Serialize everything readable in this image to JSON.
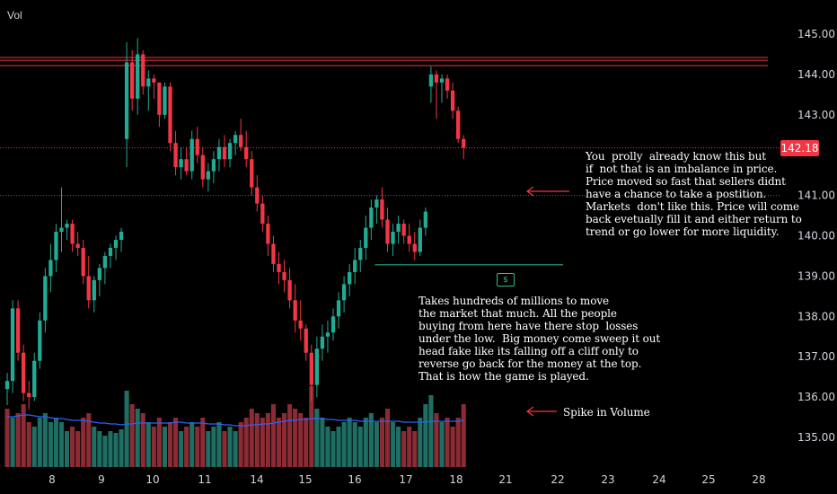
{
  "header": {
    "volume_label": "Vol"
  },
  "last_price_label": "142.18",
  "money_icon": "money-icon",
  "annotations": {
    "imbalance": "You  prolly  already know this but\nif  not that is an imbalance in price.\nPrice moved so fast that sellers didnt\nhave a chance to take a postition.\nMarkets  don't like this. Price will come\nback evetually fill it and either return to\ntrend or go lower for more liquidity.",
    "sweep": "Takes hundreds of millions to move\nthe market that much. All the people\nbuying from here have there stop  losses\nunder the low.  Big money come sweep it out\nhead fake like its falling off a cliff only to\nreverse go back for the money at the top.\nThat is how the game is played.",
    "volume": "Spike in Volume"
  },
  "colors": {
    "background": "#000000",
    "up": "#22ab94",
    "down": "#f23645",
    "vol_up": "#1e6e63",
    "vol_down": "#8c2b34",
    "ma": "#2962ff",
    "text": "#d1d4dc"
  },
  "chart_data": {
    "type": "candlestick",
    "y_ticks": [
      "145.00",
      "144.00",
      "143.00",
      "142.00",
      "141.00",
      "140.00",
      "139.00",
      "138.00",
      "137.00",
      "136.00",
      "135.00"
    ],
    "x_ticks": [
      "8",
      "9",
      "10",
      "11",
      "14",
      "15",
      "16",
      "17",
      "18",
      "21",
      "22",
      "23",
      "24",
      "25",
      "28"
    ],
    "ylim": [
      134.75,
      145.3
    ],
    "last_price": 142.18,
    "resistance_levels": [
      144.42,
      144.35,
      144.22
    ],
    "imbalance_level": 141.0,
    "support_level": 139.28,
    "candles": [
      [
        136.2,
        136.6,
        135.8,
        136.4
      ],
      [
        136.4,
        138.4,
        136.1,
        138.2
      ],
      [
        138.2,
        138.4,
        136.9,
        137.1
      ],
      [
        137.1,
        137.3,
        135.9,
        136.1
      ],
      [
        136.1,
        136.4,
        135.7,
        136.0
      ],
      [
        136.0,
        137.1,
        135.9,
        136.9
      ],
      [
        136.9,
        138.1,
        136.7,
        137.9
      ],
      [
        137.9,
        139.2,
        137.6,
        139.0
      ],
      [
        139.0,
        139.8,
        138.6,
        139.4
      ],
      [
        139.4,
        140.3,
        139.1,
        140.1
      ],
      [
        140.1,
        141.2,
        139.6,
        140.2
      ],
      [
        140.2,
        140.4,
        139.9,
        140.3
      ],
      [
        140.3,
        140.4,
        139.6,
        139.8
      ],
      [
        139.8,
        140.1,
        139.5,
        139.7
      ],
      [
        139.7,
        139.9,
        138.8,
        139.0
      ],
      [
        139.0,
        139.5,
        138.2,
        138.4
      ],
      [
        138.4,
        139.0,
        138.1,
        138.9
      ],
      [
        138.9,
        139.3,
        138.5,
        139.2
      ],
      [
        139.2,
        139.6,
        138.8,
        139.5
      ],
      [
        139.5,
        139.8,
        139.2,
        139.7
      ],
      [
        139.7,
        140.0,
        139.4,
        139.9
      ],
      [
        139.9,
        140.2,
        139.6,
        140.1
      ],
      [
        142.4,
        144.8,
        141.7,
        144.3
      ],
      [
        144.3,
        144.6,
        143.1,
        143.4
      ],
      [
        143.4,
        144.9,
        143.0,
        144.5
      ],
      [
        144.5,
        144.6,
        143.5,
        143.7
      ],
      [
        143.7,
        144.1,
        143.1,
        143.9
      ],
      [
        143.9,
        144.0,
        143.4,
        143.8
      ],
      [
        143.8,
        143.8,
        142.7,
        143.0
      ],
      [
        143.0,
        143.8,
        142.9,
        143.7
      ],
      [
        143.7,
        143.8,
        142.1,
        142.3
      ],
      [
        142.3,
        142.6,
        141.5,
        141.7
      ],
      [
        141.7,
        142.2,
        141.4,
        141.9
      ],
      [
        141.9,
        142.2,
        141.5,
        141.6
      ],
      [
        141.6,
        142.6,
        141.4,
        142.4
      ],
      [
        142.4,
        142.7,
        141.8,
        142.0
      ],
      [
        142.0,
        142.2,
        141.2,
        141.4
      ],
      [
        141.4,
        141.8,
        141.1,
        141.6
      ],
      [
        141.6,
        142.1,
        141.3,
        141.9
      ],
      [
        141.9,
        142.4,
        141.6,
        142.2
      ],
      [
        142.2,
        142.5,
        141.7,
        141.9
      ],
      [
        141.9,
        142.4,
        141.7,
        142.3
      ],
      [
        142.3,
        142.6,
        142.0,
        142.5
      ],
      [
        142.5,
        142.9,
        142.1,
        142.2
      ],
      [
        142.2,
        142.6,
        141.7,
        141.9
      ],
      [
        141.9,
        142.1,
        141.0,
        141.2
      ],
      [
        141.2,
        141.5,
        140.6,
        140.8
      ],
      [
        140.8,
        141.0,
        140.1,
        140.3
      ],
      [
        140.3,
        140.5,
        139.5,
        139.8
      ],
      [
        139.8,
        140.0,
        139.1,
        139.3
      ],
      [
        139.3,
        139.6,
        138.8,
        139.1
      ],
      [
        139.1,
        139.4,
        138.6,
        138.9
      ],
      [
        138.9,
        139.2,
        138.2,
        138.4
      ],
      [
        138.4,
        138.8,
        137.6,
        137.9
      ],
      [
        137.9,
        138.4,
        137.4,
        137.7
      ],
      [
        137.7,
        137.8,
        136.9,
        137.1
      ],
      [
        137.1,
        137.3,
        135.9,
        136.3
      ],
      [
        136.3,
        137.5,
        136.0,
        137.2
      ],
      [
        137.2,
        137.8,
        136.9,
        137.5
      ],
      [
        137.5,
        137.9,
        137.1,
        137.6
      ],
      [
        137.6,
        138.2,
        137.4,
        138.0
      ],
      [
        138.0,
        138.6,
        137.7,
        138.4
      ],
      [
        138.4,
        139.0,
        138.1,
        138.8
      ],
      [
        138.8,
        139.3,
        138.5,
        139.1
      ],
      [
        139.1,
        139.7,
        138.8,
        139.4
      ],
      [
        139.4,
        139.9,
        139.1,
        139.7
      ],
      [
        139.7,
        140.5,
        139.4,
        140.2
      ],
      [
        140.2,
        140.9,
        139.9,
        140.7
      ],
      [
        140.7,
        141.0,
        140.3,
        140.9
      ],
      [
        140.9,
        141.2,
        140.2,
        140.4
      ],
      [
        140.4,
        140.7,
        139.6,
        139.8
      ],
      [
        139.8,
        140.3,
        139.5,
        140.1
      ],
      [
        140.1,
        140.5,
        139.8,
        140.3
      ],
      [
        140.3,
        140.4,
        139.8,
        140.0
      ],
      [
        140.0,
        140.3,
        139.6,
        139.8
      ],
      [
        139.8,
        140.1,
        139.4,
        139.6
      ],
      [
        139.6,
        140.4,
        139.5,
        140.2
      ],
      [
        140.2,
        140.7,
        140.0,
        140.6
      ],
      [
        143.7,
        144.2,
        143.3,
        144.0
      ],
      [
        144.0,
        144.1,
        142.9,
        143.8
      ],
      [
        143.8,
        144.0,
        143.3,
        143.9
      ],
      [
        143.9,
        144.0,
        143.4,
        143.6
      ],
      [
        143.6,
        143.8,
        142.9,
        143.1
      ],
      [
        143.1,
        143.2,
        142.3,
        142.4
      ],
      [
        142.4,
        142.5,
        141.9,
        142.18
      ]
    ],
    "volume": [
      [
        0.65,
        0
      ],
      [
        0.55,
        1
      ],
      [
        0.6,
        0
      ],
      [
        0.7,
        0
      ],
      [
        0.5,
        0
      ],
      [
        0.45,
        1
      ],
      [
        0.55,
        1
      ],
      [
        0.6,
        1
      ],
      [
        0.5,
        1
      ],
      [
        0.55,
        1
      ],
      [
        0.5,
        1
      ],
      [
        0.4,
        1
      ],
      [
        0.45,
        0
      ],
      [
        0.4,
        0
      ],
      [
        0.55,
        0
      ],
      [
        0.6,
        0
      ],
      [
        0.45,
        1
      ],
      [
        0.4,
        1
      ],
      [
        0.35,
        1
      ],
      [
        0.4,
        1
      ],
      [
        0.38,
        1
      ],
      [
        0.42,
        1
      ],
      [
        0.85,
        1
      ],
      [
        0.7,
        0
      ],
      [
        0.65,
        1
      ],
      [
        0.6,
        0
      ],
      [
        0.5,
        1
      ],
      [
        0.45,
        0
      ],
      [
        0.55,
        0
      ],
      [
        0.45,
        1
      ],
      [
        0.5,
        0
      ],
      [
        0.55,
        0
      ],
      [
        0.4,
        1
      ],
      [
        0.45,
        0
      ],
      [
        0.5,
        1
      ],
      [
        0.45,
        0
      ],
      [
        0.55,
        0
      ],
      [
        0.4,
        1
      ],
      [
        0.45,
        1
      ],
      [
        0.5,
        1
      ],
      [
        0.4,
        0
      ],
      [
        0.45,
        1
      ],
      [
        0.4,
        1
      ],
      [
        0.5,
        0
      ],
      [
        0.55,
        0
      ],
      [
        0.65,
        0
      ],
      [
        0.6,
        0
      ],
      [
        0.55,
        0
      ],
      [
        0.6,
        0
      ],
      [
        0.7,
        0
      ],
      [
        0.55,
        0
      ],
      [
        0.6,
        0
      ],
      [
        0.7,
        0
      ],
      [
        0.65,
        0
      ],
      [
        0.6,
        0
      ],
      [
        0.55,
        0
      ],
      [
        0.9,
        0
      ],
      [
        0.65,
        1
      ],
      [
        0.55,
        1
      ],
      [
        0.45,
        1
      ],
      [
        0.4,
        1
      ],
      [
        0.45,
        1
      ],
      [
        0.5,
        1
      ],
      [
        0.55,
        1
      ],
      [
        0.5,
        1
      ],
      [
        0.45,
        1
      ],
      [
        0.55,
        1
      ],
      [
        0.6,
        1
      ],
      [
        0.5,
        1
      ],
      [
        0.55,
        0
      ],
      [
        0.65,
        0
      ],
      [
        0.5,
        1
      ],
      [
        0.45,
        1
      ],
      [
        0.4,
        0
      ],
      [
        0.45,
        0
      ],
      [
        0.4,
        0
      ],
      [
        0.55,
        1
      ],
      [
        0.7,
        1
      ],
      [
        0.8,
        1
      ],
      [
        0.6,
        0
      ],
      [
        0.5,
        1
      ],
      [
        0.55,
        0
      ],
      [
        0.45,
        0
      ],
      [
        0.55,
        0
      ],
      [
        0.7,
        0
      ]
    ],
    "ma": [
      0.56,
      0.56,
      0.57,
      0.58,
      0.58,
      0.57,
      0.56,
      0.56,
      0.55,
      0.54,
      0.54,
      0.53,
      0.52,
      0.52,
      0.52,
      0.51,
      0.5,
      0.49,
      0.49,
      0.48,
      0.48,
      0.47,
      0.48,
      0.48,
      0.49,
      0.49,
      0.49,
      0.49,
      0.49,
      0.49,
      0.49,
      0.5,
      0.5,
      0.49,
      0.49,
      0.49,
      0.49,
      0.48,
      0.48,
      0.48,
      0.47,
      0.47,
      0.46,
      0.46,
      0.46,
      0.47,
      0.47,
      0.48,
      0.48,
      0.49,
      0.5,
      0.51,
      0.52,
      0.52,
      0.53,
      0.53,
      0.54,
      0.54,
      0.54,
      0.53,
      0.53,
      0.52,
      0.52,
      0.52,
      0.52,
      0.51,
      0.51,
      0.51,
      0.51,
      0.51,
      0.51,
      0.51,
      0.51,
      0.5,
      0.5,
      0.5,
      0.5,
      0.5,
      0.51,
      0.51,
      0.51,
      0.51,
      0.51,
      0.51,
      0.52
    ]
  }
}
